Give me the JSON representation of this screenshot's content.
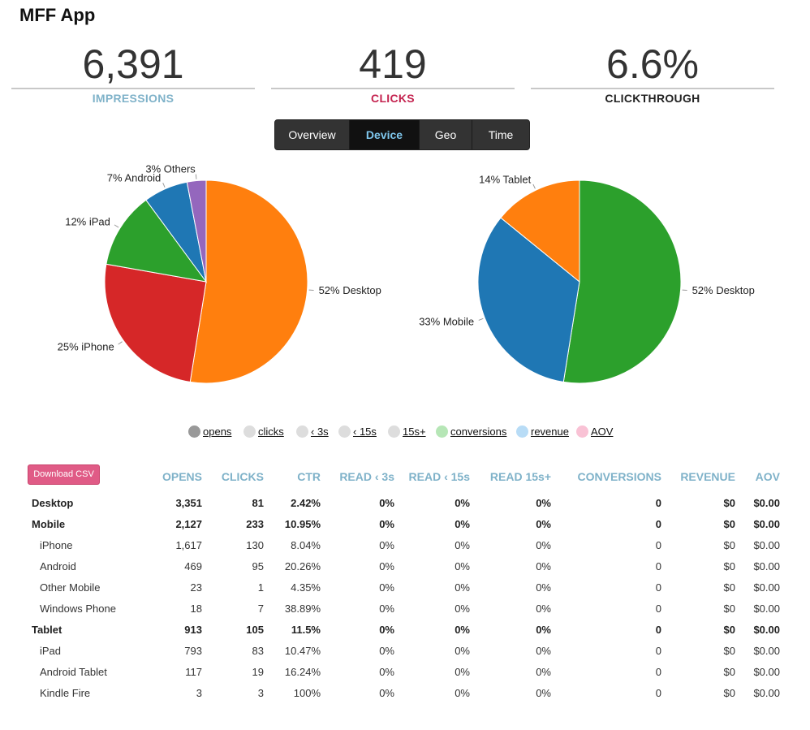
{
  "app": {
    "title": "MFF App"
  },
  "stats": [
    {
      "value": "6,391",
      "label": "IMPRESSIONS"
    },
    {
      "value": "419",
      "label": "CLICKS"
    },
    {
      "value": "6.6%",
      "label": "CLICKTHROUGH"
    }
  ],
  "tabs": [
    {
      "label": "Overview",
      "active": false
    },
    {
      "label": "Device",
      "active": true
    },
    {
      "label": "Geo",
      "active": false
    },
    {
      "label": "Time",
      "active": false
    }
  ],
  "chart_data": [
    {
      "type": "pie",
      "slices": [
        {
          "label": "Desktop",
          "value": 52,
          "color": "#ff7f0e"
        },
        {
          "label": "iPhone",
          "value": 25,
          "color": "#d62728"
        },
        {
          "label": "iPad",
          "value": 12,
          "color": "#2ca02c"
        },
        {
          "label": "Android",
          "value": 7,
          "color": "#1f77b4"
        },
        {
          "label": "Others",
          "value": 3,
          "color": "#9467bd"
        }
      ],
      "slice_labels": [
        "52% Desktop",
        "25% iPhone",
        "12% iPad",
        "7% Android",
        "3% Others"
      ]
    },
    {
      "type": "pie",
      "slices": [
        {
          "label": "Desktop",
          "value": 52,
          "color": "#2ca02c"
        },
        {
          "label": "Mobile",
          "value": 33,
          "color": "#1f77b4"
        },
        {
          "label": "Tablet",
          "value": 14,
          "color": "#ff7f0e"
        }
      ],
      "slice_labels": [
        "52% Desktop",
        "33% Mobile",
        "14% Tablet"
      ]
    }
  ],
  "legend": [
    {
      "label": "opens",
      "color": "#999999"
    },
    {
      "label": "clicks",
      "color": "#dddddd"
    },
    {
      "label": "‹ 3s",
      "color": "#dddddd"
    },
    {
      "label": "‹ 15s",
      "color": "#dddddd"
    },
    {
      "label": "15s+",
      "color": "#dddddd"
    },
    {
      "label": "conversions",
      "color": "#b6e6b6"
    },
    {
      "label": "revenue",
      "color": "#b8dcf6"
    },
    {
      "label": "AOV",
      "color": "#f9c2d5"
    }
  ],
  "table": {
    "download_label": "Download CSV",
    "headers": [
      "",
      "OPENS",
      "CLICKS",
      "CTR",
      "READ ‹ 3s",
      "READ ‹ 15s",
      "READ 15s+",
      "CONVERSIONS",
      "REVENUE",
      "AOV"
    ],
    "rows": [
      {
        "group": true,
        "cells": [
          "Desktop",
          "3,351",
          "81",
          "2.42%",
          "0%",
          "0%",
          "0%",
          "0",
          "$0",
          "$0.00"
        ]
      },
      {
        "group": true,
        "cells": [
          "Mobile",
          "2,127",
          "233",
          "10.95%",
          "0%",
          "0%",
          "0%",
          "0",
          "$0",
          "$0.00"
        ]
      },
      {
        "group": false,
        "cells": [
          "iPhone",
          "1,617",
          "130",
          "8.04%",
          "0%",
          "0%",
          "0%",
          "0",
          "$0",
          "$0.00"
        ]
      },
      {
        "group": false,
        "cells": [
          "Android",
          "469",
          "95",
          "20.26%",
          "0%",
          "0%",
          "0%",
          "0",
          "$0",
          "$0.00"
        ]
      },
      {
        "group": false,
        "cells": [
          "Other Mobile",
          "23",
          "1",
          "4.35%",
          "0%",
          "0%",
          "0%",
          "0",
          "$0",
          "$0.00"
        ]
      },
      {
        "group": false,
        "cells": [
          "Windows Phone",
          "18",
          "7",
          "38.89%",
          "0%",
          "0%",
          "0%",
          "0",
          "$0",
          "$0.00"
        ]
      },
      {
        "group": true,
        "cells": [
          "Tablet",
          "913",
          "105",
          "11.5%",
          "0%",
          "0%",
          "0%",
          "0",
          "$0",
          "$0.00"
        ]
      },
      {
        "group": false,
        "cells": [
          "iPad",
          "793",
          "83",
          "10.47%",
          "0%",
          "0%",
          "0%",
          "0",
          "$0",
          "$0.00"
        ]
      },
      {
        "group": false,
        "cells": [
          "Android Tablet",
          "117",
          "19",
          "16.24%",
          "0%",
          "0%",
          "0%",
          "0",
          "$0",
          "$0.00"
        ]
      },
      {
        "group": false,
        "cells": [
          "Kindle Fire",
          "3",
          "3",
          "100%",
          "0%",
          "0%",
          "0%",
          "0",
          "$0",
          "$0.00"
        ]
      }
    ]
  }
}
